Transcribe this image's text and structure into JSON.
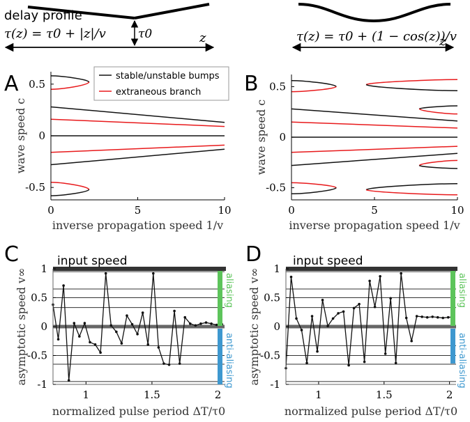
{
  "figure": {
    "left_schematic": {
      "caption": "delay profile",
      "formula": "τ(z) = τ0 + |z|/v",
      "tau0_label": "τ0",
      "z_label": "z"
    },
    "right_schematic": {
      "formula": "τ(z) = τ0 + (1 − cos(z))/v",
      "z_label": "z"
    },
    "panels": {
      "A": {
        "letter": "A",
        "legend": [
          "stable/unstable bumps",
          "extraneous branch"
        ]
      },
      "B": {
        "letter": "B"
      },
      "C": {
        "letter": "C",
        "input_label": "input speed",
        "aliasing": "aliasing",
        "anti_aliasing": "anti-aliasing"
      },
      "D": {
        "letter": "D",
        "input_label": "input speed",
        "aliasing": "aliasing",
        "anti_aliasing": "anti-aliasing"
      }
    }
  },
  "chart_data": [
    {
      "id": "A",
      "type": "line",
      "xlabel": "inverse propagation speed 1/v",
      "ylabel": "wave speed c",
      "xlim": [
        0,
        10
      ],
      "ylim": [
        -0.62,
        0.62
      ],
      "xticks": [
        0,
        5,
        10
      ],
      "yticks": [
        -0.5,
        0,
        0.5
      ],
      "series": [
        {
          "name": "stable/unstable bumps",
          "color": "#111111",
          "x": [
            0,
            10
          ],
          "y": [
            0.28,
            0.13
          ]
        },
        {
          "name": "extraneous branch",
          "color": "#e8191b",
          "x": [
            0,
            10
          ],
          "y": [
            0.16,
            0.09
          ]
        },
        {
          "name": "stable/unstable bumps",
          "color": "#111111",
          "x": [
            0,
            10
          ],
          "y": [
            0,
            0
          ]
        },
        {
          "name": "extraneous branch",
          "color": "#e8191b",
          "x": [
            0,
            10
          ],
          "y": [
            -0.16,
            -0.09
          ]
        },
        {
          "name": "stable/unstable bumps",
          "color": "#111111",
          "x": [
            0,
            10
          ],
          "y": [
            -0.28,
            -0.13
          ]
        }
      ],
      "folds": [
        {
          "x0": 0,
          "tip": 2.2,
          "upper": 0.58,
          "lower": 0.45,
          "mid": 0.52,
          "dir": 1,
          "upper_color": "#111111",
          "lower_color": "#e8191b"
        },
        {
          "x0": 0,
          "tip": 2.2,
          "upper": -0.45,
          "lower": -0.58,
          "mid": -0.52,
          "dir": 1,
          "upper_color": "#e8191b",
          "lower_color": "#111111"
        }
      ]
    },
    {
      "id": "B",
      "type": "line",
      "xlabel": "inverse propagation speed 1/v",
      "ylabel": "wave speed c",
      "xlim": [
        0,
        10
      ],
      "ylim": [
        -0.62,
        0.62
      ],
      "xticks": [
        0,
        5,
        10
      ],
      "yticks": [
        -0.5,
        0,
        0.5
      ],
      "series": [
        {
          "name": "stable/unstable bumps",
          "color": "#111111",
          "x": [
            0,
            10
          ],
          "y": [
            0.28,
            0.16
          ]
        },
        {
          "name": "extraneous branch",
          "color": "#e8191b",
          "x": [
            0,
            10
          ],
          "y": [
            0.15,
            0.09
          ]
        },
        {
          "name": "stable/unstable bumps",
          "color": "#111111",
          "x": [
            0,
            10
          ],
          "y": [
            0,
            0
          ]
        },
        {
          "name": "extraneous branch",
          "color": "#e8191b",
          "x": [
            0,
            10
          ],
          "y": [
            -0.15,
            -0.09
          ]
        },
        {
          "name": "stable/unstable bumps",
          "color": "#111111",
          "x": [
            0,
            10
          ],
          "y": [
            -0.28,
            -0.16
          ]
        }
      ],
      "folds": [
        {
          "x0": 0,
          "tip": 2.7,
          "upper": 0.56,
          "lower": 0.45,
          "mid": 0.5,
          "dir": 1,
          "upper_color": "#111111",
          "lower_color": "#e8191b"
        },
        {
          "x0": 0,
          "tip": 2.7,
          "upper": -0.45,
          "lower": -0.56,
          "mid": -0.5,
          "dir": 1,
          "upper_color": "#e8191b",
          "lower_color": "#111111"
        },
        {
          "x0": 10,
          "tip": 4.5,
          "upper": 0.57,
          "lower": 0.46,
          "mid": 0.52,
          "dir": -1,
          "upper_color": "#e8191b",
          "lower_color": "#111111"
        },
        {
          "x0": 10,
          "tip": 4.5,
          "upper": -0.46,
          "lower": -0.57,
          "mid": -0.52,
          "dir": -1,
          "upper_color": "#111111",
          "lower_color": "#e8191b"
        },
        {
          "x0": 10,
          "tip": 7.7,
          "upper": 0.31,
          "lower": 0.23,
          "mid": 0.28,
          "dir": -1,
          "upper_color": "#111111",
          "lower_color": "#e8191b"
        },
        {
          "x0": 10,
          "tip": 7.7,
          "upper": -0.23,
          "lower": -0.31,
          "mid": -0.28,
          "dir": -1,
          "upper_color": "#e8191b",
          "lower_color": "#111111"
        }
      ]
    },
    {
      "id": "C",
      "type": "line",
      "xlabel": "normalized pulse period ΔT/τ0",
      "ylabel": "asymptotic speed v∞",
      "xlim": [
        0.75,
        2.05
      ],
      "ylim": [
        -1,
        1
      ],
      "xticks": [
        1,
        1.5,
        2
      ],
      "yticks": [
        -1,
        -0.5,
        0,
        0.5,
        1
      ],
      "ytick_labels": [
        "-1",
        "-0.5",
        "0",
        "0.5",
        "1"
      ],
      "hlines": [
        -0.95,
        -0.65,
        -0.5,
        -0.33,
        0.33,
        0.5,
        0.65,
        0.95
      ],
      "x": [
        0.75,
        0.79,
        0.83,
        0.87,
        0.91,
        0.95,
        0.99,
        1.03,
        1.07,
        1.11,
        1.15,
        1.19,
        1.23,
        1.27,
        1.31,
        1.35,
        1.39,
        1.43,
        1.47,
        1.51,
        1.55,
        1.59,
        1.63,
        1.67,
        1.71,
        1.75,
        1.79,
        1.83,
        1.87,
        1.91,
        1.95,
        1.99,
        2.03
      ],
      "y": [
        0.38,
        -0.22,
        0.71,
        -0.93,
        0.06,
        -0.17,
        0.06,
        -0.27,
        -0.31,
        -0.45,
        0.92,
        0.02,
        -0.09,
        -0.29,
        0.19,
        0.04,
        -0.13,
        0.24,
        -0.31,
        0.92,
        -0.36,
        -0.64,
        -0.66,
        0.27,
        -0.64,
        0.16,
        0.05,
        0.02,
        0.05,
        0.07,
        0.05,
        0.03,
        0.04
      ]
    },
    {
      "id": "D",
      "type": "line",
      "xlabel": "normalized pulse period ΔT/τ0",
      "ylabel": "asymptotic speed v∞",
      "xlim": [
        0.75,
        2.05
      ],
      "ylim": [
        -1,
        1
      ],
      "xticks": [
        1,
        1.5,
        2
      ],
      "yticks": [
        -1,
        -0.5,
        0,
        0.5,
        1
      ],
      "ytick_labels": [
        "-1",
        "-0.5",
        "0",
        "0.5",
        "1"
      ],
      "hlines": [
        -0.95,
        -0.65,
        -0.5,
        -0.33,
        0.33,
        0.5,
        0.65,
        0.95
      ],
      "x": [
        0.75,
        0.79,
        0.83,
        0.87,
        0.91,
        0.95,
        0.99,
        1.03,
        1.07,
        1.11,
        1.15,
        1.19,
        1.23,
        1.27,
        1.31,
        1.35,
        1.39,
        1.43,
        1.47,
        1.51,
        1.55,
        1.59,
        1.63,
        1.67,
        1.71,
        1.75,
        1.79,
        1.83,
        1.87,
        1.91,
        1.95,
        1.99,
        2.03
      ],
      "y": [
        -0.72,
        0.86,
        0.14,
        -0.06,
        -0.63,
        0.18,
        -0.43,
        0.46,
        0.01,
        0.14,
        0.23,
        0.26,
        -0.67,
        0.32,
        0.39,
        -0.61,
        0.79,
        0.34,
        0.87,
        -0.47,
        0.49,
        -0.63,
        0.92,
        0.15,
        -0.25,
        0.18,
        0.17,
        0.16,
        0.17,
        0.16,
        0.15,
        0.16,
        0.17
      ]
    }
  ]
}
